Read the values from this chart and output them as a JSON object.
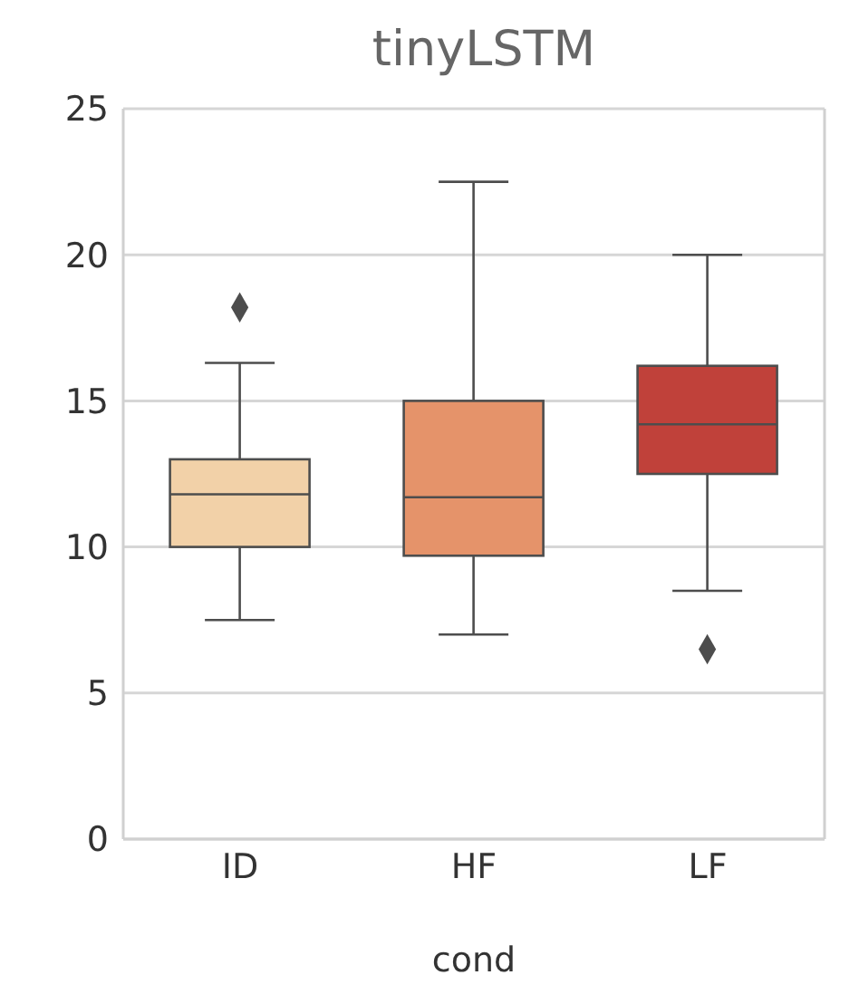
{
  "chart_data": {
    "type": "box",
    "title": "tinyLSTM",
    "xlabel": "cond",
    "categories": [
      "ID",
      "HF",
      "LF"
    ],
    "colors": [
      "#f2d1a8",
      "#e5936a",
      "#c0413a"
    ],
    "boxes": [
      {
        "low": 7.5,
        "q1": 10.0,
        "median": 11.8,
        "q3": 13.0,
        "high": 16.3,
        "outliers": [
          18.2
        ]
      },
      {
        "low": 7.0,
        "q1": 9.7,
        "median": 11.7,
        "q3": 15.0,
        "high": 22.5
      },
      {
        "low": 8.5,
        "q1": 12.5,
        "median": 14.2,
        "q3": 16.2,
        "high": 20.0,
        "outliers": [
          6.5
        ]
      }
    ],
    "ylim": [
      0,
      25
    ],
    "yticks": [
      0,
      5,
      10,
      15,
      20,
      25
    ],
    "grid": "y",
    "marker": "diamond"
  }
}
